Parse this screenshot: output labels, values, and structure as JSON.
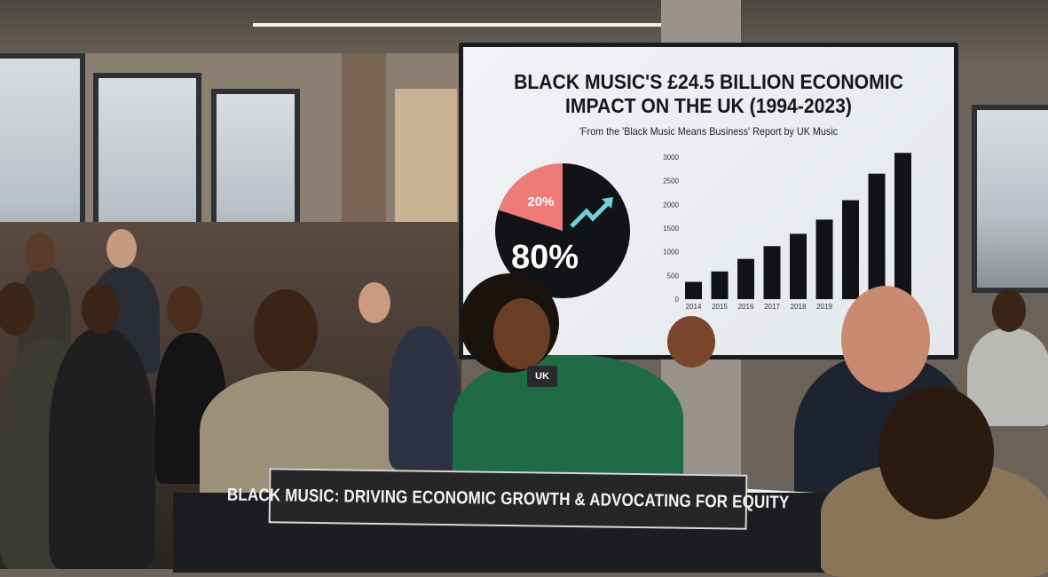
{
  "screen": {
    "title_line1": "BLACK MUSIC'S £24.5 BILLION ECONOMIC",
    "title_line2": "IMPACT ON THE UK (1994-2023)",
    "subtitle": "'From the 'Black Music Means Business' Report by UK Music"
  },
  "chart_data": [
    {
      "type": "pie",
      "slices": [
        {
          "label": "20%",
          "value": 20,
          "color": "#ee7b78"
        },
        {
          "label": "80%",
          "value": 80,
          "color": "#121316"
        }
      ],
      "annotation_icon": "trending-up-arrow-icon",
      "annotation_color": "#6fd1de"
    },
    {
      "type": "bar",
      "categories": [
        "2014",
        "2015",
        "2016",
        "2017",
        "2018",
        "2019",
        "",
        "",
        ""
      ],
      "values": [
        365,
        585,
        850,
        1120,
        1380,
        1680,
        2090,
        2650,
        3090
      ],
      "yticks": [
        "0",
        "500",
        "1000",
        "1500",
        "2000",
        "2500",
        "3000"
      ],
      "ylim": [
        0,
        3000
      ],
      "bar_color": "#121316",
      "grid": false
    }
  ],
  "banner": {
    "text": "BLACK MUSIC: DRIVING ECONOMIC GROWTH & ADVOCATING FOR EQUITY"
  },
  "microphone": {
    "label": "UK"
  },
  "colors": {
    "speaker_jacket": "#1f6b45",
    "screen_bg": "#eceef2"
  }
}
